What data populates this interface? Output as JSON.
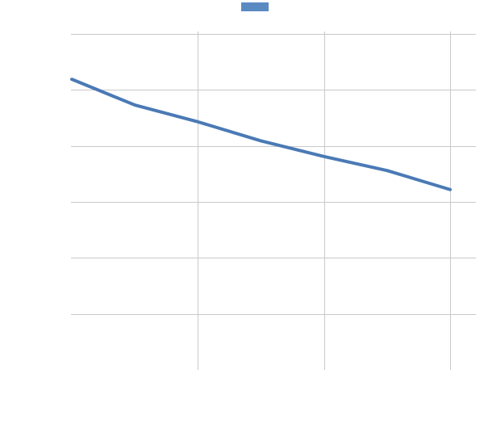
{
  "chart_data": {
    "type": "line",
    "title": "",
    "xlabel": "",
    "ylabel": "",
    "grid": true,
    "legend": "top-center",
    "xlim": [
      0,
      3
    ],
    "ylim": [
      0,
      6
    ],
    "x": [
      0,
      0.5,
      1,
      1.5,
      2,
      2.5,
      3
    ],
    "series": [
      {
        "color": "#4a7ab5",
        "legend_color": "#5b8ac2",
        "values": [
          5.19,
          4.73,
          4.43,
          4.09,
          3.81,
          3.56,
          3.22
        ]
      }
    ]
  }
}
